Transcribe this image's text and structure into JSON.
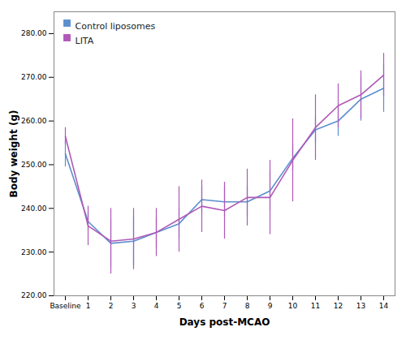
{
  "chart_data": {
    "type": "line",
    "xlabel": "Days post-MCAO",
    "ylabel": "Body weight (g)",
    "categories": [
      "Baseline",
      "1",
      "2",
      "3",
      "4",
      "5",
      "6",
      "7",
      "8",
      "9",
      "10",
      "11",
      "12",
      "13",
      "14"
    ],
    "series": [
      {
        "name": "Control liposomes",
        "color": "#5b8fce",
        "values": [
          252.5,
          237.0,
          232.0,
          232.5,
          234.5,
          236.5,
          242.0,
          241.5,
          241.5,
          244.0,
          251.5,
          258.0,
          260.0,
          265.0,
          267.5
        ],
        "errors": [
          3.0,
          2.0,
          5.5,
          5.5,
          3.5,
          3.5,
          3.0,
          3.5,
          3.5,
          4.5,
          3.0,
          3.0,
          3.5,
          5.0,
          5.5
        ]
      },
      {
        "name": "LITA",
        "color": "#b058b8",
        "values": [
          256.5,
          236.0,
          232.5,
          233.0,
          234.5,
          237.5,
          240.5,
          239.5,
          242.5,
          242.5,
          251.0,
          258.5,
          263.5,
          266.0,
          270.5
        ],
        "errors": [
          2.0,
          4.5,
          7.5,
          7.0,
          5.5,
          7.5,
          6.0,
          6.5,
          6.5,
          8.5,
          9.5,
          7.5,
          5.0,
          5.5,
          5.0
        ]
      }
    ],
    "ylim": [
      220,
      285
    ],
    "yticks": [
      {
        "value": 220,
        "label": "220.00"
      },
      {
        "value": 230,
        "label": "230.00"
      },
      {
        "value": 240,
        "label": "240.00"
      },
      {
        "value": 250,
        "label": "250.00"
      },
      {
        "value": 260,
        "label": "260.00"
      },
      {
        "value": 270,
        "label": "270.00"
      },
      {
        "value": 280,
        "label": "280.00"
      }
    ],
    "grid": false,
    "legend": "upper left"
  }
}
